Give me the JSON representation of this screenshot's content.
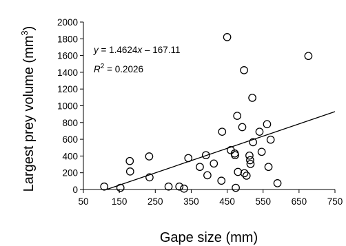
{
  "chart_data": {
    "type": "scatter",
    "xlabel": "Gape size (mm)",
    "ylabel_main": "Largest prey volume (mm",
    "ylabel_sup": "3",
    "ylabel_close": ")",
    "xlim": [
      50,
      750
    ],
    "ylim": [
      0,
      2000
    ],
    "x_ticks": [
      50,
      150,
      250,
      350,
      450,
      550,
      650,
      750
    ],
    "y_ticks": [
      0,
      200,
      400,
      600,
      800,
      1000,
      1200,
      1400,
      1600,
      1800,
      2000
    ],
    "grid": false,
    "regression": {
      "slope": 1.4624,
      "intercept": -167.11,
      "x_range": [
        114.3,
        750
      ],
      "equation_y": "y",
      "equation_rest": " = 1.4624",
      "equation_x": "x",
      "equation_tail": " – 167.11",
      "r2_label": "R",
      "r2_sup": "2",
      "r2_rest": " = 0.2026"
    },
    "points": [
      {
        "x": 108,
        "y": 35
      },
      {
        "x": 153,
        "y": 20
      },
      {
        "x": 179,
        "y": 340
      },
      {
        "x": 180,
        "y": 215
      },
      {
        "x": 233,
        "y": 395
      },
      {
        "x": 234,
        "y": 145
      },
      {
        "x": 287,
        "y": 35
      },
      {
        "x": 317,
        "y": 35
      },
      {
        "x": 330,
        "y": 10
      },
      {
        "x": 342,
        "y": 375
      },
      {
        "x": 374,
        "y": 270
      },
      {
        "x": 391,
        "y": 410
      },
      {
        "x": 395,
        "y": 170
      },
      {
        "x": 413,
        "y": 310
      },
      {
        "x": 434,
        "y": 105
      },
      {
        "x": 436,
        "y": 690
      },
      {
        "x": 450,
        "y": 1820
      },
      {
        "x": 460,
        "y": 470
      },
      {
        "x": 471,
        "y": 430
      },
      {
        "x": 472,
        "y": 410
      },
      {
        "x": 474,
        "y": 20
      },
      {
        "x": 478,
        "y": 880
      },
      {
        "x": 480,
        "y": 210
      },
      {
        "x": 492,
        "y": 745
      },
      {
        "x": 497,
        "y": 1425
      },
      {
        "x": 498,
        "y": 195
      },
      {
        "x": 504,
        "y": 165
      },
      {
        "x": 512,
        "y": 405
      },
      {
        "x": 514,
        "y": 350
      },
      {
        "x": 515,
        "y": 305
      },
      {
        "x": 520,
        "y": 1095
      },
      {
        "x": 522,
        "y": 565
      },
      {
        "x": 540,
        "y": 690
      },
      {
        "x": 546,
        "y": 450
      },
      {
        "x": 561,
        "y": 780
      },
      {
        "x": 565,
        "y": 270
      },
      {
        "x": 571,
        "y": 595
      },
      {
        "x": 590,
        "y": 75
      },
      {
        "x": 676,
        "y": 1595
      }
    ]
  }
}
